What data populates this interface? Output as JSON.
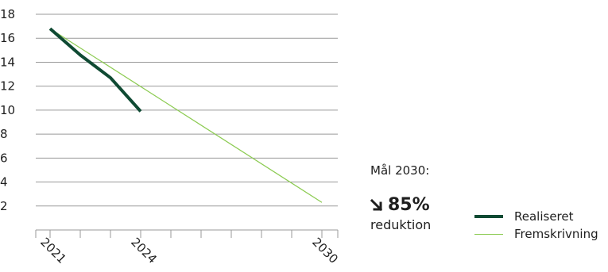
{
  "chart_data": {
    "type": "line",
    "x_ticks": [
      "2021",
      "2024",
      "2030"
    ],
    "x_range": [
      2021,
      2030
    ],
    "ylim": [
      0,
      18
    ],
    "y_ticks": [
      2,
      4,
      6,
      8,
      10,
      12,
      14,
      16,
      18
    ],
    "grid": "horizontal",
    "legend_position": "bottom-right",
    "series": [
      {
        "name": "Realiseret",
        "color": "#0f4a33",
        "points": [
          {
            "x": 2021,
            "y": 16.8
          },
          {
            "x": 2022,
            "y": 14.6
          },
          {
            "x": 2023,
            "y": 12.7
          },
          {
            "x": 2024,
            "y": 9.9
          }
        ]
      },
      {
        "name": "Fremskrivning",
        "color": "#8ccb52",
        "points": [
          {
            "x": 2021,
            "y": 16.8
          },
          {
            "x": 2030,
            "y": 2.3
          }
        ]
      }
    ],
    "annotation": {
      "label": "Mål 2030:",
      "value": "85%",
      "unit": "reduktion"
    }
  }
}
